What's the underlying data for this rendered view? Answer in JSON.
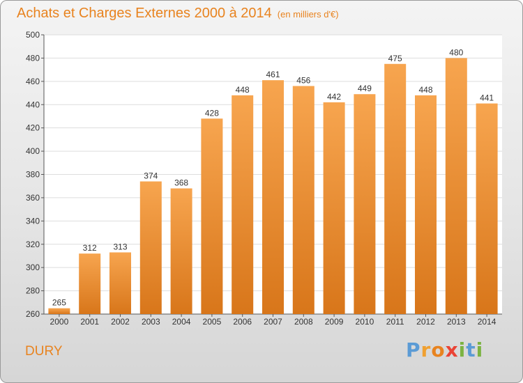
{
  "title": "Achats et Charges Externes 2000 à 2014",
  "unit_note": "(en milliers d'€)",
  "commune": "DURY",
  "logo": {
    "letters": [
      "P",
      "r",
      "o",
      "x",
      "i",
      "t",
      "i"
    ],
    "colors": [
      "#5b9bd5",
      "#f0a030",
      "#e8831f",
      "#ea4335",
      "#7cb342",
      "#5b9bd5",
      "#7cb342"
    ]
  },
  "colors": {
    "bar_top": "#f7a54f",
    "bar_bottom": "#d8761a",
    "title": "#e8831f"
  },
  "chart_data": {
    "type": "bar",
    "categories": [
      "2000",
      "2001",
      "2002",
      "2003",
      "2004",
      "2005",
      "2006",
      "2007",
      "2008",
      "2009",
      "2010",
      "2011",
      "2012",
      "2013",
      "2014"
    ],
    "values": [
      265,
      312,
      313,
      374,
      368,
      428,
      448,
      461,
      456,
      442,
      449,
      475,
      448,
      480,
      441
    ],
    "ylim": [
      260,
      500
    ],
    "yticks": [
      260,
      280,
      300,
      320,
      340,
      360,
      380,
      400,
      420,
      440,
      460,
      480,
      500
    ],
    "grid": true
  }
}
